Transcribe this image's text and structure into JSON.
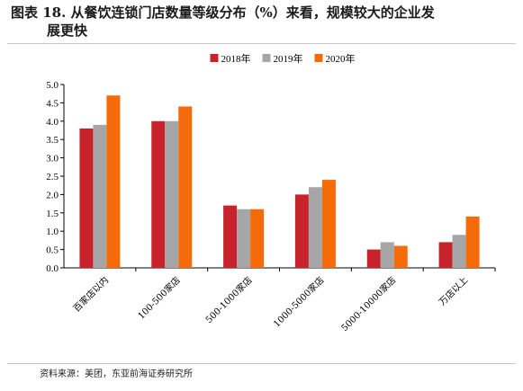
{
  "figure": {
    "title_line1": "图表 18. 从餐饮连锁门店数量等级分布（%）来看，规模较大的企业发",
    "title_line2": "展更快",
    "source": "资料来源：美团，东亚前海证券研究所"
  },
  "chart_data": {
    "type": "bar",
    "categories": [
      "百家店以内",
      "100-500家店",
      "500-1000家店",
      "1000-5000家店",
      "5000-10000家店",
      "万店以上"
    ],
    "series": [
      {
        "name": "2018年",
        "color": "#c8232c",
        "values": [
          3.8,
          4.0,
          1.7,
          2.0,
          0.5,
          0.7
        ]
      },
      {
        "name": "2019年",
        "color": "#a6a6a6",
        "values": [
          3.9,
          4.0,
          1.6,
          2.2,
          0.7,
          0.9
        ]
      },
      {
        "name": "2020年",
        "color": "#f56b0a",
        "values": [
          4.7,
          4.4,
          1.6,
          2.4,
          0.6,
          1.4
        ]
      }
    ],
    "ylim": [
      0,
      5.0
    ],
    "yticks": [
      "0.0",
      "0.5",
      "1.0",
      "1.5",
      "2.0",
      "2.5",
      "3.0",
      "3.5",
      "4.0",
      "4.5",
      "5.0"
    ],
    "ytick_values": [
      0,
      0.5,
      1.0,
      1.5,
      2.0,
      2.5,
      3.0,
      3.5,
      4.0,
      4.5,
      5.0
    ],
    "legend_position": "top-center",
    "grid": false
  }
}
